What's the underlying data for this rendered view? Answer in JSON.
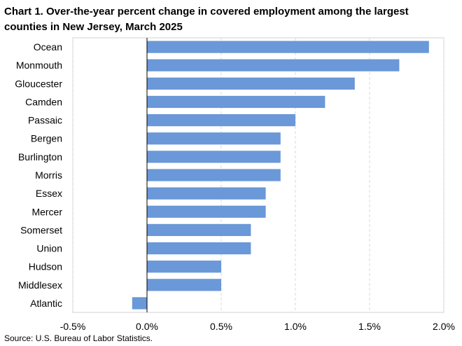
{
  "chart_data": {
    "type": "bar",
    "orientation": "horizontal",
    "title": "Chart 1. Over-the-year percent change in covered employment among the largest counties in New Jersey, March 2025",
    "categories": [
      "Ocean",
      "Monmouth",
      "Gloucester",
      "Camden",
      "Passaic",
      "Bergen",
      "Burlington",
      "Morris",
      "Essex",
      "Mercer",
      "Somerset",
      "Union",
      "Hudson",
      "Middlesex",
      "Atlantic"
    ],
    "values": [
      1.9,
      1.7,
      1.4,
      1.2,
      1.0,
      0.9,
      0.9,
      0.9,
      0.8,
      0.8,
      0.7,
      0.7,
      0.5,
      0.5,
      -0.1
    ],
    "xlim": [
      -0.5,
      2.0
    ],
    "xticks": [
      -0.5,
      0,
      0.5,
      1.0,
      1.5,
      2.0
    ],
    "xtick_labels": [
      "-0.5%",
      "0.0%",
      "0.5%",
      "1.0%",
      "1.5%",
      "2.0%"
    ],
    "grid": "vertical-dashed",
    "bar_color": "#6a98d8",
    "xlabel": "",
    "ylabel": ""
  },
  "source": "Source: U.S. Bureau of Labor Statistics."
}
